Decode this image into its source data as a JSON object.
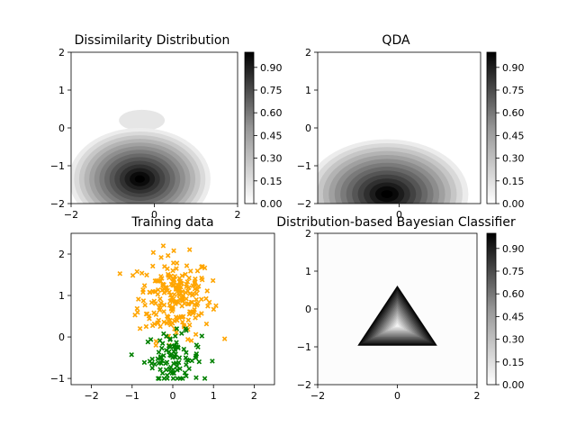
{
  "chart_data": [
    {
      "type": "heatmap",
      "title": "Dissimilarity Distribution",
      "xlim": [
        -2,
        2
      ],
      "ylim": [
        -2,
        2
      ],
      "xticks": [
        "−2",
        "0",
        "2"
      ],
      "yticks": [
        "−2",
        "−1",
        "0",
        "1",
        "2"
      ],
      "field": {
        "shape": "ellipse",
        "center": [
          -0.35,
          -1.35
        ],
        "radius": [
          1.7,
          1.35
        ],
        "core_value": 0.98,
        "upper_blob": {
          "center": [
            -0.3,
            0.2
          ],
          "value": 0.1
        }
      },
      "colormap": "Greys",
      "colorbar": {
        "range": [
          0,
          1
        ],
        "ticks": [
          "0.00",
          "0.15",
          "0.30",
          "0.45",
          "0.60",
          "0.75",
          "0.90"
        ]
      }
    },
    {
      "type": "heatmap",
      "title": "QDA",
      "xlim": [
        -2,
        2
      ],
      "ylim": [
        -2,
        2
      ],
      "xticks": [
        "0"
      ],
      "yticks": [
        "−2",
        "−1",
        "0",
        "1",
        "2"
      ],
      "field": {
        "shape": "ellipse",
        "center": [
          -0.3,
          -1.75
        ],
        "radius": [
          2.0,
          1.45
        ],
        "core_value": 0.99
      },
      "colormap": "Greys",
      "colorbar": {
        "range": [
          0,
          1
        ],
        "ticks": [
          "0.00",
          "0.15",
          "0.30",
          "0.45",
          "0.60",
          "0.75",
          "0.90"
        ]
      }
    },
    {
      "type": "scatter",
      "title": "Training data",
      "xlim": [
        -2.5,
        2.5
      ],
      "ylim": [
        -1.15,
        2.5
      ],
      "xticks": [
        "−2",
        "−1",
        "0",
        "1",
        "2"
      ],
      "yticks": [
        "−1",
        "0",
        "1",
        "2"
      ],
      "marker": "x",
      "series": [
        {
          "color": "#ffa500",
          "n": 220,
          "mean": [
            0.05,
            0.95
          ],
          "sd": [
            0.45,
            0.5
          ],
          "ymin": -0.2
        },
        {
          "color": "#008000",
          "n": 95,
          "mean": [
            0.0,
            -0.5
          ],
          "sd": [
            0.35,
            0.3
          ],
          "ymax": 0.35,
          "ymin": -1.0
        }
      ]
    },
    {
      "type": "heatmap",
      "title": "Distribution-based Bayesian Classifier",
      "xlim": [
        -2,
        2
      ],
      "ylim": [
        -2,
        2
      ],
      "xticks": [
        "−2",
        "0",
        "2"
      ],
      "yticks": [
        "−2",
        "−1",
        "0",
        "1",
        "2"
      ],
      "field": {
        "shape": "triangle",
        "vertices": [
          [
            -1.0,
            -0.97
          ],
          [
            1.0,
            -0.97
          ],
          [
            0.0,
            0.62
          ]
        ]
      },
      "colormap": "Greys",
      "colorbar": {
        "range": [
          0,
          1
        ],
        "ticks": [
          "0.00",
          "0.15",
          "0.30",
          "0.45",
          "0.60",
          "0.75",
          "0.90"
        ]
      }
    }
  ]
}
